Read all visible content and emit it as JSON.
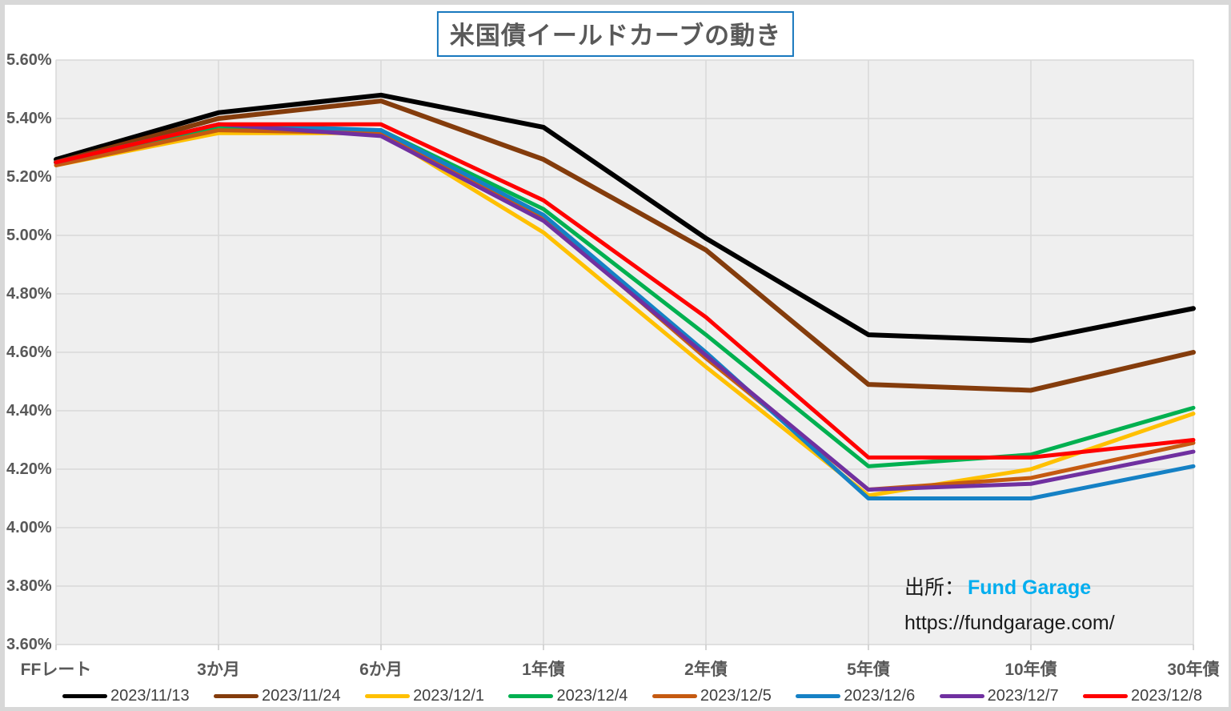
{
  "title": "米国債イールドカーブの動き",
  "source": {
    "prefix": "出所：",
    "brand": "Fund Garage",
    "url": "https://fundgarage.com/"
  },
  "colors": {
    "title_border": "#1878BE",
    "brand_blue": "#00AEEF",
    "plot_background": "#EFEFEF",
    "gridline": "#D9D9D9",
    "axis_text": "#595959"
  },
  "chart_data": {
    "type": "line",
    "title": "米国債イールドカーブの動き",
    "categories": [
      "FFレート",
      "3か月",
      "6か月",
      "1年債",
      "2年債",
      "5年債",
      "10年債",
      "30年債"
    ],
    "y_axis": {
      "min": 3.6,
      "max": 5.6,
      "step": 0.2,
      "unit": "%"
    },
    "y_ticks": [
      "5.60%",
      "5.40%",
      "5.20%",
      "5.00%",
      "4.80%",
      "4.60%",
      "4.40%",
      "4.20%",
      "4.00%",
      "3.80%",
      "3.60%"
    ],
    "grid": true,
    "legend_position": "bottom",
    "series": [
      {
        "name": "2023/11/13",
        "color": "#000000",
        "values": [
          5.26,
          5.42,
          5.48,
          5.37,
          4.99,
          4.66,
          4.64,
          4.75
        ]
      },
      {
        "name": "2023/11/24",
        "color": "#843C0C",
        "values": [
          5.25,
          5.4,
          5.46,
          5.26,
          4.95,
          4.49,
          4.47,
          4.6
        ]
      },
      {
        "name": "2023/12/1",
        "color": "#FFC000",
        "values": [
          5.24,
          5.35,
          5.35,
          5.01,
          4.55,
          4.11,
          4.2,
          4.39
        ]
      },
      {
        "name": "2023/12/4",
        "color": "#00B050",
        "values": [
          5.25,
          5.37,
          5.36,
          5.09,
          4.66,
          4.21,
          4.25,
          4.41
        ]
      },
      {
        "name": "2023/12/5",
        "color": "#C55A11",
        "values": [
          5.24,
          5.36,
          5.35,
          5.06,
          4.58,
          4.13,
          4.17,
          4.29
        ]
      },
      {
        "name": "2023/12/6",
        "color": "#1581C5",
        "values": [
          5.25,
          5.38,
          5.36,
          5.07,
          4.6,
          4.1,
          4.1,
          4.21
        ]
      },
      {
        "name": "2023/12/7",
        "color": "#7030A0",
        "values": [
          5.25,
          5.38,
          5.34,
          5.05,
          4.59,
          4.13,
          4.15,
          4.26
        ]
      },
      {
        "name": "2023/12/8",
        "color": "#FF0000",
        "values": [
          5.25,
          5.38,
          5.38,
          5.12,
          4.72,
          4.24,
          4.24,
          4.3
        ]
      }
    ]
  }
}
